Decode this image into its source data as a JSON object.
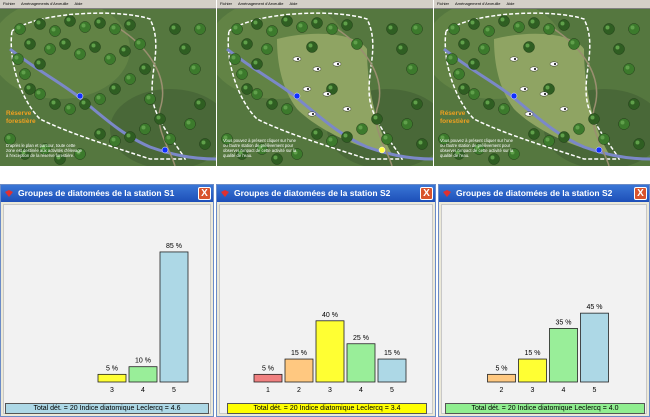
{
  "map_panels": [
    {
      "menu": [
        "Fichier",
        "Aménagements d'Arveuille",
        "Aide"
      ],
      "title": "Réserve\nforestière",
      "text": "D'après le plan et parcour, toute cette zone est destinée aux activités d'élevage à l'exception de la réserve forestière."
    },
    {
      "menu": [
        "Fichier",
        "Aménagement d'Arveuille",
        "Aide"
      ],
      "title": "",
      "text": "Vous pouvez à présent cliquer sur l'une ou l'autre station de prélèvement pour observer l'impact de cette activité sur la qualité de l'eau."
    },
    {
      "menu": [
        "Fichier",
        "Aménagement d'Arveuille",
        "Aide"
      ],
      "title": "Réserve\nforestière",
      "text": "Vous pouvez à présent cliquer sur l'une ou l'autre station de prélèvement pour observer l'impact de cette activité sur la qualité de l'eau."
    }
  ],
  "windows": [
    {
      "title": "Groupes de diatomées de la station S1",
      "close_label": "X",
      "footer": "Total dét. = 20 Indice diatomique Leclercq = 4.6",
      "footer_color": "#add8e6"
    },
    {
      "title": "Groupes de diatomées de la station S2",
      "close_label": "X",
      "footer": "Total dét. = 20 Indice diatomique Leclercq = 3.4",
      "footer_color": "#ffff00"
    },
    {
      "title": "Groupes de diatomées de la station S2",
      "close_label": "X",
      "footer": "Total dét. = 20 Indice diatomique Leclercq = 4.0",
      "footer_color": "#90ee90"
    }
  ],
  "chart_data": [
    {
      "type": "bar",
      "categories": [
        "3",
        "4",
        "5"
      ],
      "values": [
        5,
        10,
        85
      ],
      "labels": [
        "5 %",
        "10 %",
        "85 %"
      ],
      "colors": [
        "#ffff33",
        "#99ee99",
        "#add8e6"
      ],
      "ylim": [
        0,
        100
      ]
    },
    {
      "type": "bar",
      "categories": [
        "1",
        "2",
        "3",
        "4",
        "5"
      ],
      "values": [
        5,
        15,
        40,
        25,
        15
      ],
      "labels": [
        "5 %",
        "15 %",
        "40 %",
        "25 %",
        "15 %"
      ],
      "colors": [
        "#f08080",
        "#ffc880",
        "#ffff33",
        "#99ee99",
        "#add8e6"
      ],
      "ylim": [
        0,
        100
      ]
    },
    {
      "type": "bar",
      "categories": [
        "2",
        "3",
        "4",
        "5"
      ],
      "values": [
        5,
        15,
        35,
        45
      ],
      "labels": [
        "5 %",
        "15 %",
        "35 %",
        "45 %"
      ],
      "colors": [
        "#ffc880",
        "#ffff33",
        "#99ee99",
        "#add8e6"
      ],
      "ylim": [
        0,
        100
      ]
    }
  ]
}
